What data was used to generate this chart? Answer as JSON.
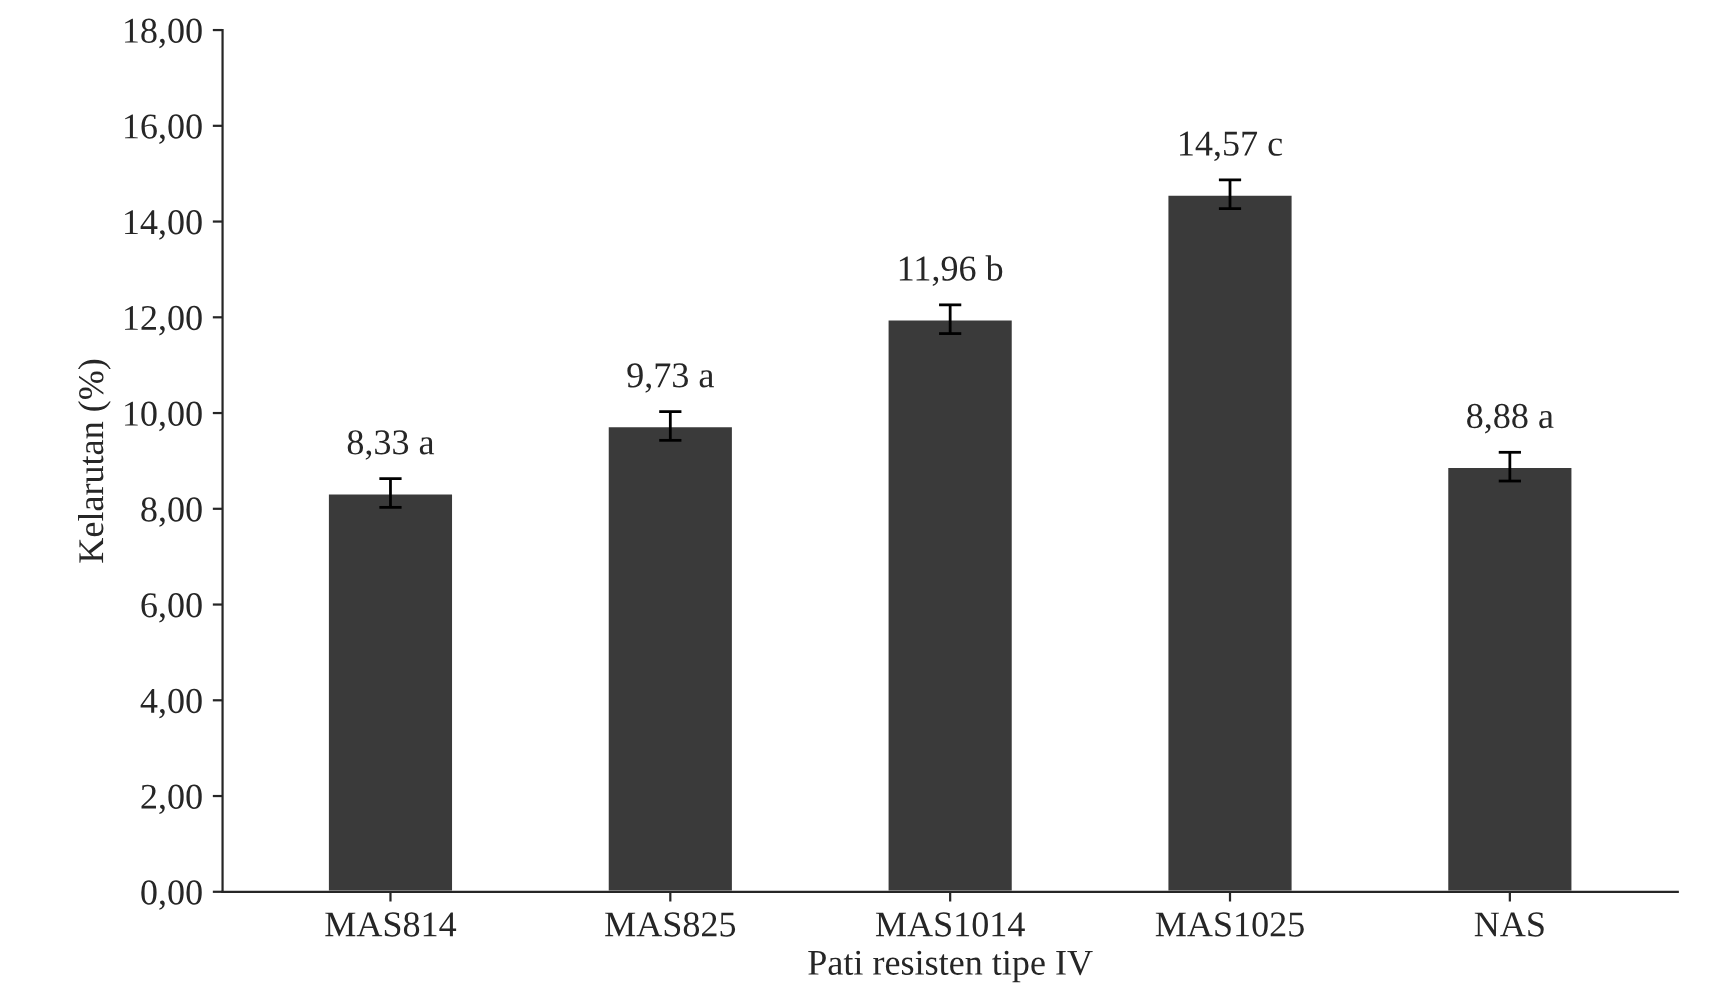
{
  "chart_data": {
    "type": "bar",
    "xlabel": "Pati resisten tipe IV",
    "ylabel": "Kelarutan (%)",
    "categories": [
      "MAS814",
      "MAS825",
      "MAS1014",
      "MAS1025",
      "NAS"
    ],
    "values": [
      8.33,
      9.73,
      11.96,
      14.57,
      8.88
    ],
    "errors": [
      0.3,
      0.3,
      0.3,
      0.3,
      0.3
    ],
    "value_labels": [
      "8,33 a",
      "9,73 a",
      "11,96 b",
      "14,57 c",
      "8,88 a"
    ],
    "color": "#3a3a3a",
    "ylim": [
      0,
      18
    ],
    "yticks": [
      {
        "value": 0,
        "label": "0,00"
      },
      {
        "value": 2,
        "label": "2,00"
      },
      {
        "value": 4,
        "label": "4,00"
      },
      {
        "value": 6,
        "label": "6,00"
      },
      {
        "value": 8,
        "label": "8,00"
      },
      {
        "value": 10,
        "label": "10,00"
      },
      {
        "value": 12,
        "label": "12,00"
      },
      {
        "value": 14,
        "label": "14,00"
      },
      {
        "value": 16,
        "label": "16,00"
      },
      {
        "value": 18,
        "label": "18,00"
      }
    ],
    "grid": false,
    "legend": false
  }
}
